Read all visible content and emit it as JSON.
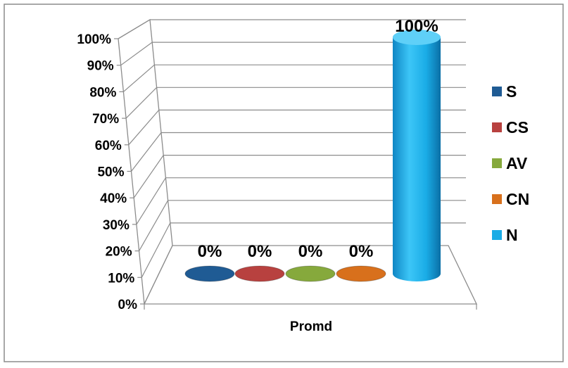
{
  "chart_data": {
    "type": "bar",
    "style": "3d-cylinder",
    "categories": [
      "Promd"
    ],
    "xlabel": "Promd",
    "ylabel": "",
    "title": "",
    "ylim": [
      0,
      100
    ],
    "y_ticks": [
      "0%",
      "10%",
      "20%",
      "30%",
      "40%",
      "50%",
      "60%",
      "70%",
      "80%",
      "90%",
      "100%"
    ],
    "grid": true,
    "legend_position": "right",
    "series": [
      {
        "name": "S",
        "values": [
          0
        ],
        "label": "0%",
        "color": "#1f5b94"
      },
      {
        "name": "CS",
        "values": [
          0
        ],
        "label": "0%",
        "color": "#b8413f"
      },
      {
        "name": "AV",
        "values": [
          0
        ],
        "label": "0%",
        "color": "#86a93c"
      },
      {
        "name": "CN",
        "values": [
          0
        ],
        "label": "0%",
        "color": "#d8701c"
      },
      {
        "name": "N",
        "values": [
          100
        ],
        "label": "100%",
        "color": "#1aace6"
      }
    ]
  }
}
